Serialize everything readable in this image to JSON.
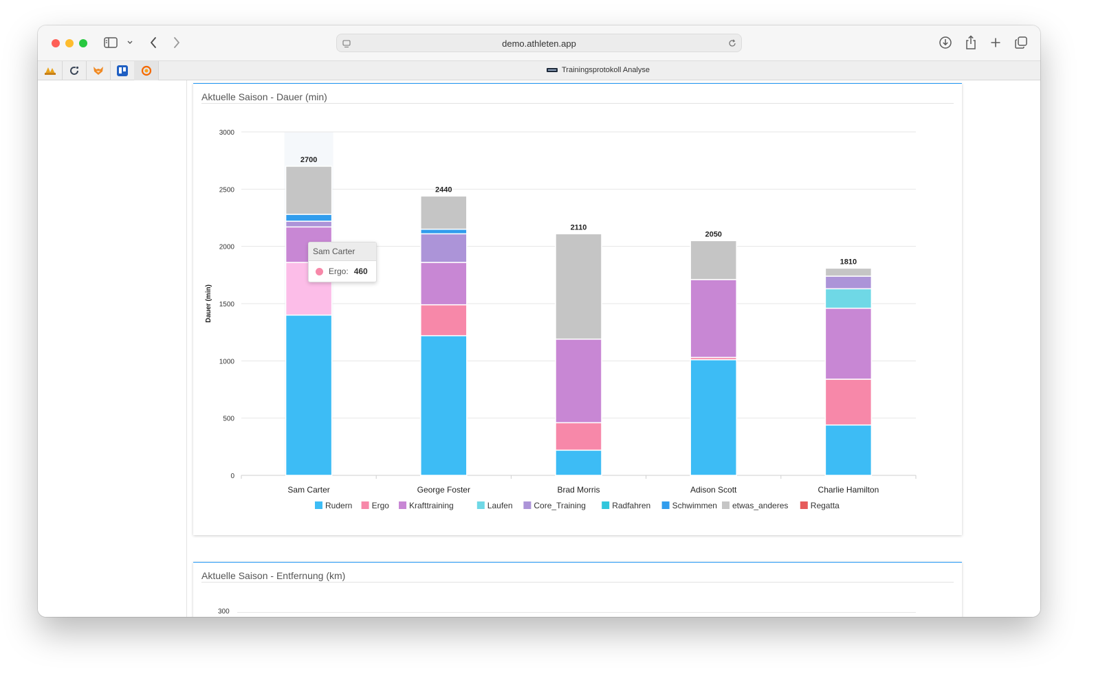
{
  "browser": {
    "url": "demo.athleten.app",
    "tab_title": "Trainingsprotokoll Analyse",
    "favicons": [
      "pma-favicon",
      "cycle-favicon",
      "fox-favicon",
      "trello-favicon",
      "grafana-favicon"
    ]
  },
  "colors": {
    "accent": "#2196f3",
    "Rudern": "#3dbcf5",
    "Ergo": "#f788a9",
    "Ergo_highlight": "#fcbde8",
    "Krafttraining": "#c887d4",
    "Laufen": "#6fd8e6",
    "Core_Training": "#ac94d8",
    "Radfahren": "#30c6dc",
    "Schwimmen": "#319ded",
    "etwas_anderes": "#c5c5c5",
    "Regatta": "#e65b5b"
  },
  "panels": [
    {
      "title": "Aktuelle Saison - Dauer (min)"
    },
    {
      "title": "Aktuelle Saison - Entfernung (km)",
      "first_tick": "300"
    }
  ],
  "tooltip": {
    "title": "Sam Carter",
    "series": "Ergo:",
    "value": "460"
  },
  "chart_data": {
    "type": "bar",
    "stacked": true,
    "title": "Aktuelle Saison - Dauer (min)",
    "ylabel": "Dauer (min)",
    "ylim": [
      0,
      3000
    ],
    "yticks": [
      0,
      500,
      1000,
      1500,
      2000,
      2500,
      3000
    ],
    "categories": [
      "Sam Carter",
      "George Foster",
      "Brad Morris",
      "Adison Scott",
      "Charlie Hamilton"
    ],
    "totals": [
      2700,
      2440,
      2110,
      2050,
      1810
    ],
    "legend_position": "bottom",
    "grid": true,
    "series": [
      {
        "name": "Rudern",
        "values": [
          1400,
          1220,
          220,
          1010,
          440
        ]
      },
      {
        "name": "Ergo",
        "values": [
          460,
          270,
          240,
          20,
          400
        ]
      },
      {
        "name": "Krafttraining",
        "values": [
          310,
          370,
          730,
          680,
          620
        ]
      },
      {
        "name": "Laufen",
        "values": [
          0,
          0,
          0,
          0,
          170
        ]
      },
      {
        "name": "Core_Training",
        "values": [
          50,
          250,
          0,
          0,
          110
        ]
      },
      {
        "name": "Radfahren",
        "values": [
          0,
          0,
          0,
          0,
          0
        ]
      },
      {
        "name": "Schwimmen",
        "values": [
          60,
          40,
          0,
          0,
          0
        ]
      },
      {
        "name": "etwas_anderes",
        "values": [
          420,
          290,
          920,
          340,
          70
        ]
      },
      {
        "name": "Regatta",
        "values": [
          0,
          0,
          0,
          0,
          0
        ]
      }
    ]
  }
}
